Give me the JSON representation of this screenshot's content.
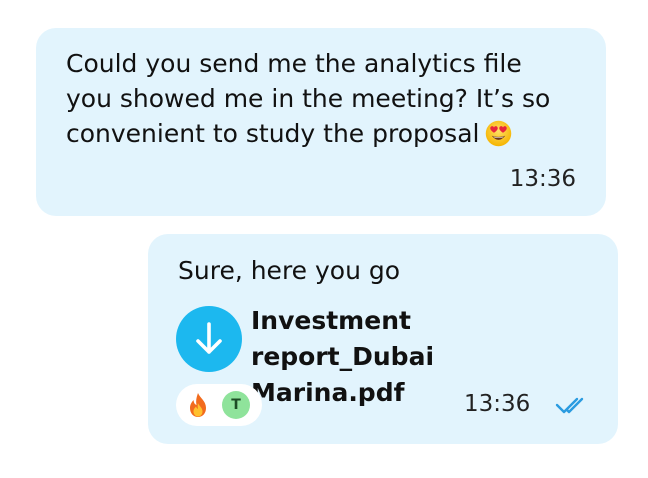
{
  "colors": {
    "bubble_bg": "#e2f4fd",
    "accent": "#1cb8ef",
    "reaction_bg": "#ffffff",
    "avatar_bg": "#8fe39b"
  },
  "incoming_message": {
    "text": "Could you send me the analytics file\nyou showed me in the meeting? It’s so\nconvenient to study the proposal",
    "emoji": "smiling-face-with-heart-eyes",
    "time": "13:36"
  },
  "outgoing_message": {
    "text": "Sure, here you go",
    "attachment": {
      "file_name": "Investment report_Dubai Marina.pdf",
      "action_icon": "download-arrow-icon"
    },
    "reactions": {
      "emoji": "fire",
      "reactor_initial": "T"
    },
    "time": "13:36",
    "status_icon": "double-check-read-icon"
  }
}
